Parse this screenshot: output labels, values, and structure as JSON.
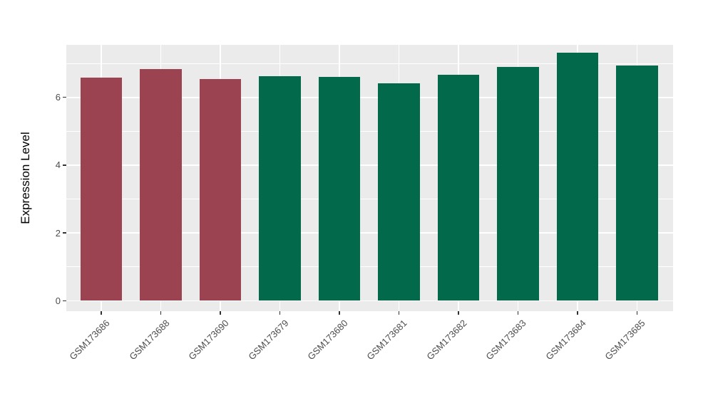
{
  "chart_data": {
    "type": "bar",
    "title": "",
    "xlabel": "",
    "ylabel": "Expression Level",
    "categories": [
      "GSM173686",
      "GSM173688",
      "GSM173690",
      "GSM173679",
      "GSM173680",
      "GSM173681",
      "GSM173682",
      "GSM173683",
      "GSM173684",
      "GSM173685"
    ],
    "values": [
      6.58,
      6.83,
      6.55,
      6.62,
      6.6,
      6.41,
      6.67,
      6.89,
      7.32,
      6.93
    ],
    "groups": [
      "group1",
      "group1",
      "group1",
      "group2",
      "group2",
      "group2",
      "group2",
      "group2",
      "group2",
      "group2"
    ],
    "group_colors": {
      "group1": "#9C4351",
      "group2": "#02694B"
    },
    "ylim": [
      0,
      7.55
    ],
    "yticks_major": [
      0,
      2,
      4,
      6
    ],
    "yticks_minor": [
      1,
      3,
      5,
      7
    ],
    "x_label_angle": 45,
    "grid": true,
    "legend_position": "none",
    "panel_background": "#EBEBEB",
    "grid_color": "#FFFFFF",
    "axis_text_color": "#4D4D4D",
    "bar_width_fraction": 0.7
  }
}
